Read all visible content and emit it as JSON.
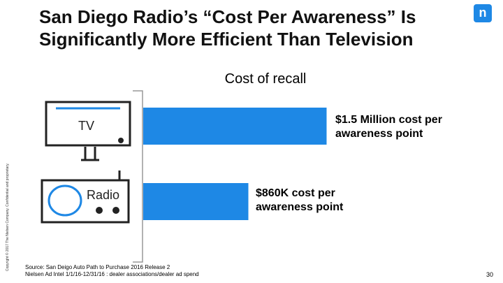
{
  "slide": {
    "title": "San Diego Radio’s “Cost Per Awareness” Is Significantly More Efficient Than Television",
    "logo_letter": "n",
    "sidebar_text": "Copyright © 2017 The Nielsen Company. Confidential and proprietary.",
    "source_line1": "Source: San Deigo Auto Path to Purchase 2016 Release 2",
    "source_line2": "Nielsen Ad Intel 1/1/16-12/31/16 : dealer associations/dealer ad spend",
    "page_number": "30"
  },
  "chart_data": {
    "type": "bar",
    "orientation": "horizontal",
    "title": "Cost of recall",
    "categories": [
      "TV",
      "Radio"
    ],
    "values": [
      1500000,
      860000
    ],
    "value_labels": [
      "$1.5 Million cost per awareness point",
      "$860K cost per awareness point"
    ],
    "xlim": [
      0,
      1600000
    ],
    "bar_color": "#1e88e5",
    "grid": false
  },
  "colors": {
    "accent": "#1e88e5",
    "icon_stroke": "#222222"
  },
  "icons": {
    "tv": "tv-icon",
    "radio": "radio-icon"
  }
}
